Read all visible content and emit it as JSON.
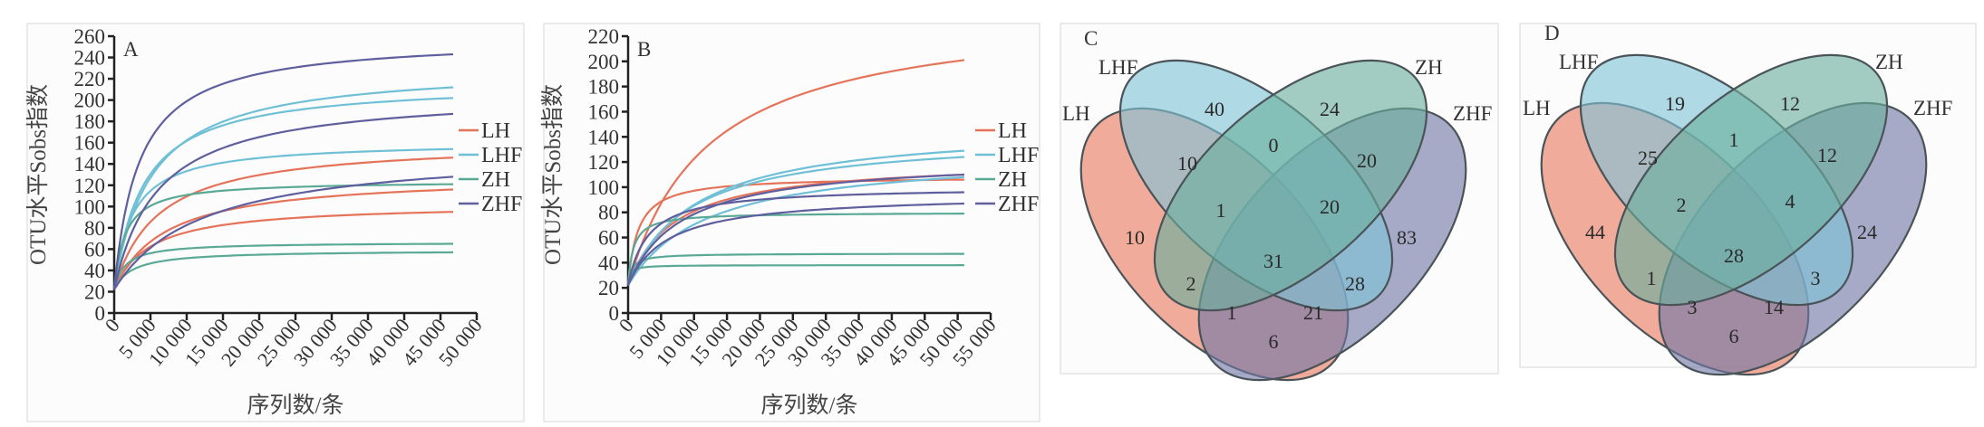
{
  "colors": {
    "LH": "#e5735a",
    "LHF": "#6fc0d6",
    "ZH": "#5aa996",
    "ZHF": "#5f5f9e"
  },
  "venn_fill": {
    "LH": "#e8795f",
    "LHF": "#80c4d7",
    "ZH": "#6aae9d",
    "ZHF": "#7177a6"
  },
  "chart_data": [
    {
      "type": "line",
      "panel": "A",
      "title": "A",
      "xlabel": "序列数/条",
      "ylabel": "OTU水平Sobs指数",
      "xlim": [
        0,
        50000
      ],
      "ylim": [
        0,
        260
      ],
      "xticks": [
        "0",
        "5 000",
        "10 000",
        "15 000",
        "20 000",
        "25 000",
        "30 000",
        "35 000",
        "40 000",
        "45 000",
        "50 000"
      ],
      "yticks": [
        "0",
        "20",
        "40",
        "60",
        "80",
        "100",
        "120",
        "140",
        "160",
        "180",
        "200",
        "220",
        "240",
        "260"
      ],
      "legend": [
        "LH",
        "LHF",
        "ZH",
        "ZHF"
      ],
      "legend_position": "right",
      "series": [
        {
          "name": "LH",
          "start": 22,
          "end_x": 46750,
          "end_y": 146,
          "half_sat": 6000
        },
        {
          "name": "LH",
          "start": 22,
          "end_x": 46750,
          "end_y": 116,
          "half_sat": 7000
        },
        {
          "name": "LH",
          "start": 22,
          "end_x": 46750,
          "end_y": 95,
          "half_sat": 5000
        },
        {
          "name": "LHF",
          "start": 22,
          "end_x": 46750,
          "end_y": 212,
          "half_sat": 5000
        },
        {
          "name": "LHF",
          "start": 22,
          "end_x": 46750,
          "end_y": 202,
          "half_sat": 4000
        },
        {
          "name": "LHF",
          "start": 22,
          "end_x": 46750,
          "end_y": 154,
          "half_sat": 2500
        },
        {
          "name": "ZH",
          "start": 22,
          "end_x": 46750,
          "end_y": 121,
          "half_sat": 1500
        },
        {
          "name": "ZH",
          "start": 22,
          "end_x": 46750,
          "end_y": 65,
          "half_sat": 1500
        },
        {
          "name": "ZH",
          "start": 22,
          "end_x": 46750,
          "end_y": 57,
          "half_sat": 2500
        },
        {
          "name": "ZHF",
          "start": 22,
          "end_x": 46750,
          "end_y": 243,
          "half_sat": 3400
        },
        {
          "name": "ZHF",
          "start": 22,
          "end_x": 46750,
          "end_y": 187,
          "half_sat": 6000
        },
        {
          "name": "ZHF",
          "start": 22,
          "end_x": 46750,
          "end_y": 128,
          "half_sat": 12000
        }
      ]
    },
    {
      "type": "line",
      "panel": "B",
      "title": "B",
      "xlabel": "序列数/条",
      "ylabel": "OTU水平Sobs指数",
      "xlim": [
        0,
        55000
      ],
      "ylim": [
        0,
        220
      ],
      "xticks": [
        "0",
        "5 000",
        "10 000",
        "15 000",
        "20 000",
        "25 000",
        "30 000",
        "35 000",
        "40 000",
        "45 000",
        "50 000",
        "55 000"
      ],
      "yticks": [
        "0",
        "20",
        "40",
        "60",
        "80",
        "100",
        "120",
        "140",
        "160",
        "180",
        "200",
        "220"
      ],
      "legend": [
        "LH",
        "LHF",
        "ZH",
        "ZHF"
      ],
      "legend_position": "right",
      "series": [
        {
          "name": "LH",
          "start": 22,
          "end_x": 51000,
          "end_y": 201,
          "half_sat": 12000
        },
        {
          "name": "LH",
          "start": 22,
          "end_x": 51000,
          "end_y": 106,
          "half_sat": 1500
        },
        {
          "name": "LH",
          "start": 22,
          "end_x": 51000,
          "end_y": 110,
          "half_sat": 7000
        },
        {
          "name": "LHF",
          "start": 22,
          "end_x": 51000,
          "end_y": 129,
          "half_sat": 10000
        },
        {
          "name": "LHF",
          "start": 22,
          "end_x": 51000,
          "end_y": 124,
          "half_sat": 9000
        },
        {
          "name": "LHF",
          "start": 22,
          "end_x": 51000,
          "end_y": 108,
          "half_sat": 12000
        },
        {
          "name": "ZH",
          "start": 22,
          "end_x": 51000,
          "end_y": 79,
          "half_sat": 800
        },
        {
          "name": "ZH",
          "start": 22,
          "end_x": 51000,
          "end_y": 47,
          "half_sat": 600
        },
        {
          "name": "ZH",
          "start": 22,
          "end_x": 51000,
          "end_y": 38,
          "half_sat": 300
        },
        {
          "name": "ZHF",
          "start": 22,
          "end_x": 51000,
          "end_y": 110,
          "half_sat": 8000
        },
        {
          "name": "ZHF",
          "start": 22,
          "end_x": 51000,
          "end_y": 96,
          "half_sat": 3000
        },
        {
          "name": "ZHF",
          "start": 22,
          "end_x": 51000,
          "end_y": 87,
          "half_sat": 6000
        }
      ]
    },
    {
      "type": "venn",
      "panel": "C",
      "title": "C",
      "sets": [
        "LH",
        "LHF",
        "ZH",
        "ZHF"
      ],
      "regions": {
        "LHF_only": 40,
        "ZH_only": 24,
        "LHF_ZH": 0,
        "LH_LHF": 10,
        "ZH_ZHF": 20,
        "LH_LHF_ZH": 1,
        "LHF_ZH_ZHF": 20,
        "LH_only": 10,
        "ZHF_only": 83,
        "all": 31,
        "LH_ZH": 2,
        "LHF_ZHF": 28,
        "LH_ZH_ZHF": 1,
        "LH_LHF_ZHF": 21,
        "LH_ZHF": 6
      }
    },
    {
      "type": "venn",
      "panel": "D",
      "title": "D",
      "sets": [
        "LH",
        "LHF",
        "ZH",
        "ZHF"
      ],
      "regions": {
        "LHF_only": 19,
        "ZH_only": 12,
        "LHF_ZH": 1,
        "LH_LHF": 25,
        "ZH_ZHF": 12,
        "LH_LHF_ZH": 2,
        "LHF_ZH_ZHF": 4,
        "LH_only": 44,
        "ZHF_only": 24,
        "all": 28,
        "LH_ZH": 1,
        "LHF_ZHF": 3,
        "LH_ZH_ZHF": 3,
        "LH_LHF_ZHF": 14,
        "LH_ZHF": 6
      }
    }
  ]
}
